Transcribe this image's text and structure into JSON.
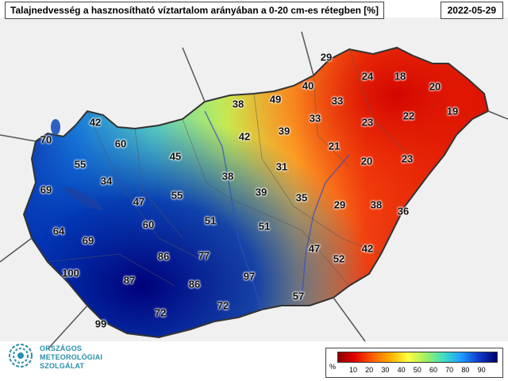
{
  "header": {
    "title": "Talajnedvesség a hasznosítható víztartalom arányában a 0-20 cm-es rétegben [%]",
    "date": "2022-05-29"
  },
  "colors": {
    "low": "#c80000",
    "mid_low": "#ff8c00",
    "mid": "#ffff40",
    "mid_high": "#40e0c0",
    "high": "#0080ff",
    "very_high": "#00007a"
  },
  "map": {
    "values": [
      {
        "label": "29",
        "value": 29
      },
      {
        "label": "24",
        "value": 24
      },
      {
        "label": "18",
        "value": 18
      },
      {
        "label": "20",
        "value": 20
      },
      {
        "label": "19",
        "value": 19
      },
      {
        "label": "40",
        "value": 40
      },
      {
        "label": "49",
        "value": 49
      },
      {
        "label": "38",
        "value": 38
      },
      {
        "label": "33",
        "value": 33
      },
      {
        "label": "33",
        "value": 33
      },
      {
        "label": "23",
        "value": 23
      },
      {
        "label": "22",
        "value": 22
      },
      {
        "label": "42",
        "value": 42
      },
      {
        "label": "39",
        "value": 39
      },
      {
        "label": "42",
        "value": 42
      },
      {
        "label": "70",
        "value": 70
      },
      {
        "label": "60",
        "value": 60
      },
      {
        "label": "45",
        "value": 45
      },
      {
        "label": "21",
        "value": 21
      },
      {
        "label": "20",
        "value": 20
      },
      {
        "label": "23",
        "value": 23
      },
      {
        "label": "55",
        "value": 55
      },
      {
        "label": "34",
        "value": 34
      },
      {
        "label": "38",
        "value": 38
      },
      {
        "label": "31",
        "value": 31
      },
      {
        "label": "69",
        "value": 69
      },
      {
        "label": "47",
        "value": 47
      },
      {
        "label": "55",
        "value": 55
      },
      {
        "label": "39",
        "value": 39
      },
      {
        "label": "35",
        "value": 35
      },
      {
        "label": "29",
        "value": 29
      },
      {
        "label": "38",
        "value": 38
      },
      {
        "label": "36",
        "value": 36
      },
      {
        "label": "51",
        "value": 51
      },
      {
        "label": "64",
        "value": 64
      },
      {
        "label": "60",
        "value": 60
      },
      {
        "label": "51",
        "value": 51
      },
      {
        "label": "69",
        "value": 69
      },
      {
        "label": "47",
        "value": 47
      },
      {
        "label": "42",
        "value": 42
      },
      {
        "label": "86",
        "value": 86
      },
      {
        "label": "77",
        "value": 77
      },
      {
        "label": "52",
        "value": 52
      },
      {
        "label": "100",
        "value": 100
      },
      {
        "label": "87",
        "value": 87
      },
      {
        "label": "86",
        "value": 86
      },
      {
        "label": "97",
        "value": 97
      },
      {
        "label": "57",
        "value": 57
      },
      {
        "label": "72",
        "value": 72
      },
      {
        "label": "72",
        "value": 72
      },
      {
        "label": "99",
        "value": 99
      }
    ]
  },
  "legend": {
    "unit": "%",
    "ticks": [
      "10",
      "20",
      "30",
      "40",
      "50",
      "60",
      "70",
      "80",
      "90"
    ]
  },
  "logo": {
    "line1": "ORSZÁGOS",
    "line2": "METEOROLÓGIAI",
    "line3": "SZOLGÁLAT"
  }
}
